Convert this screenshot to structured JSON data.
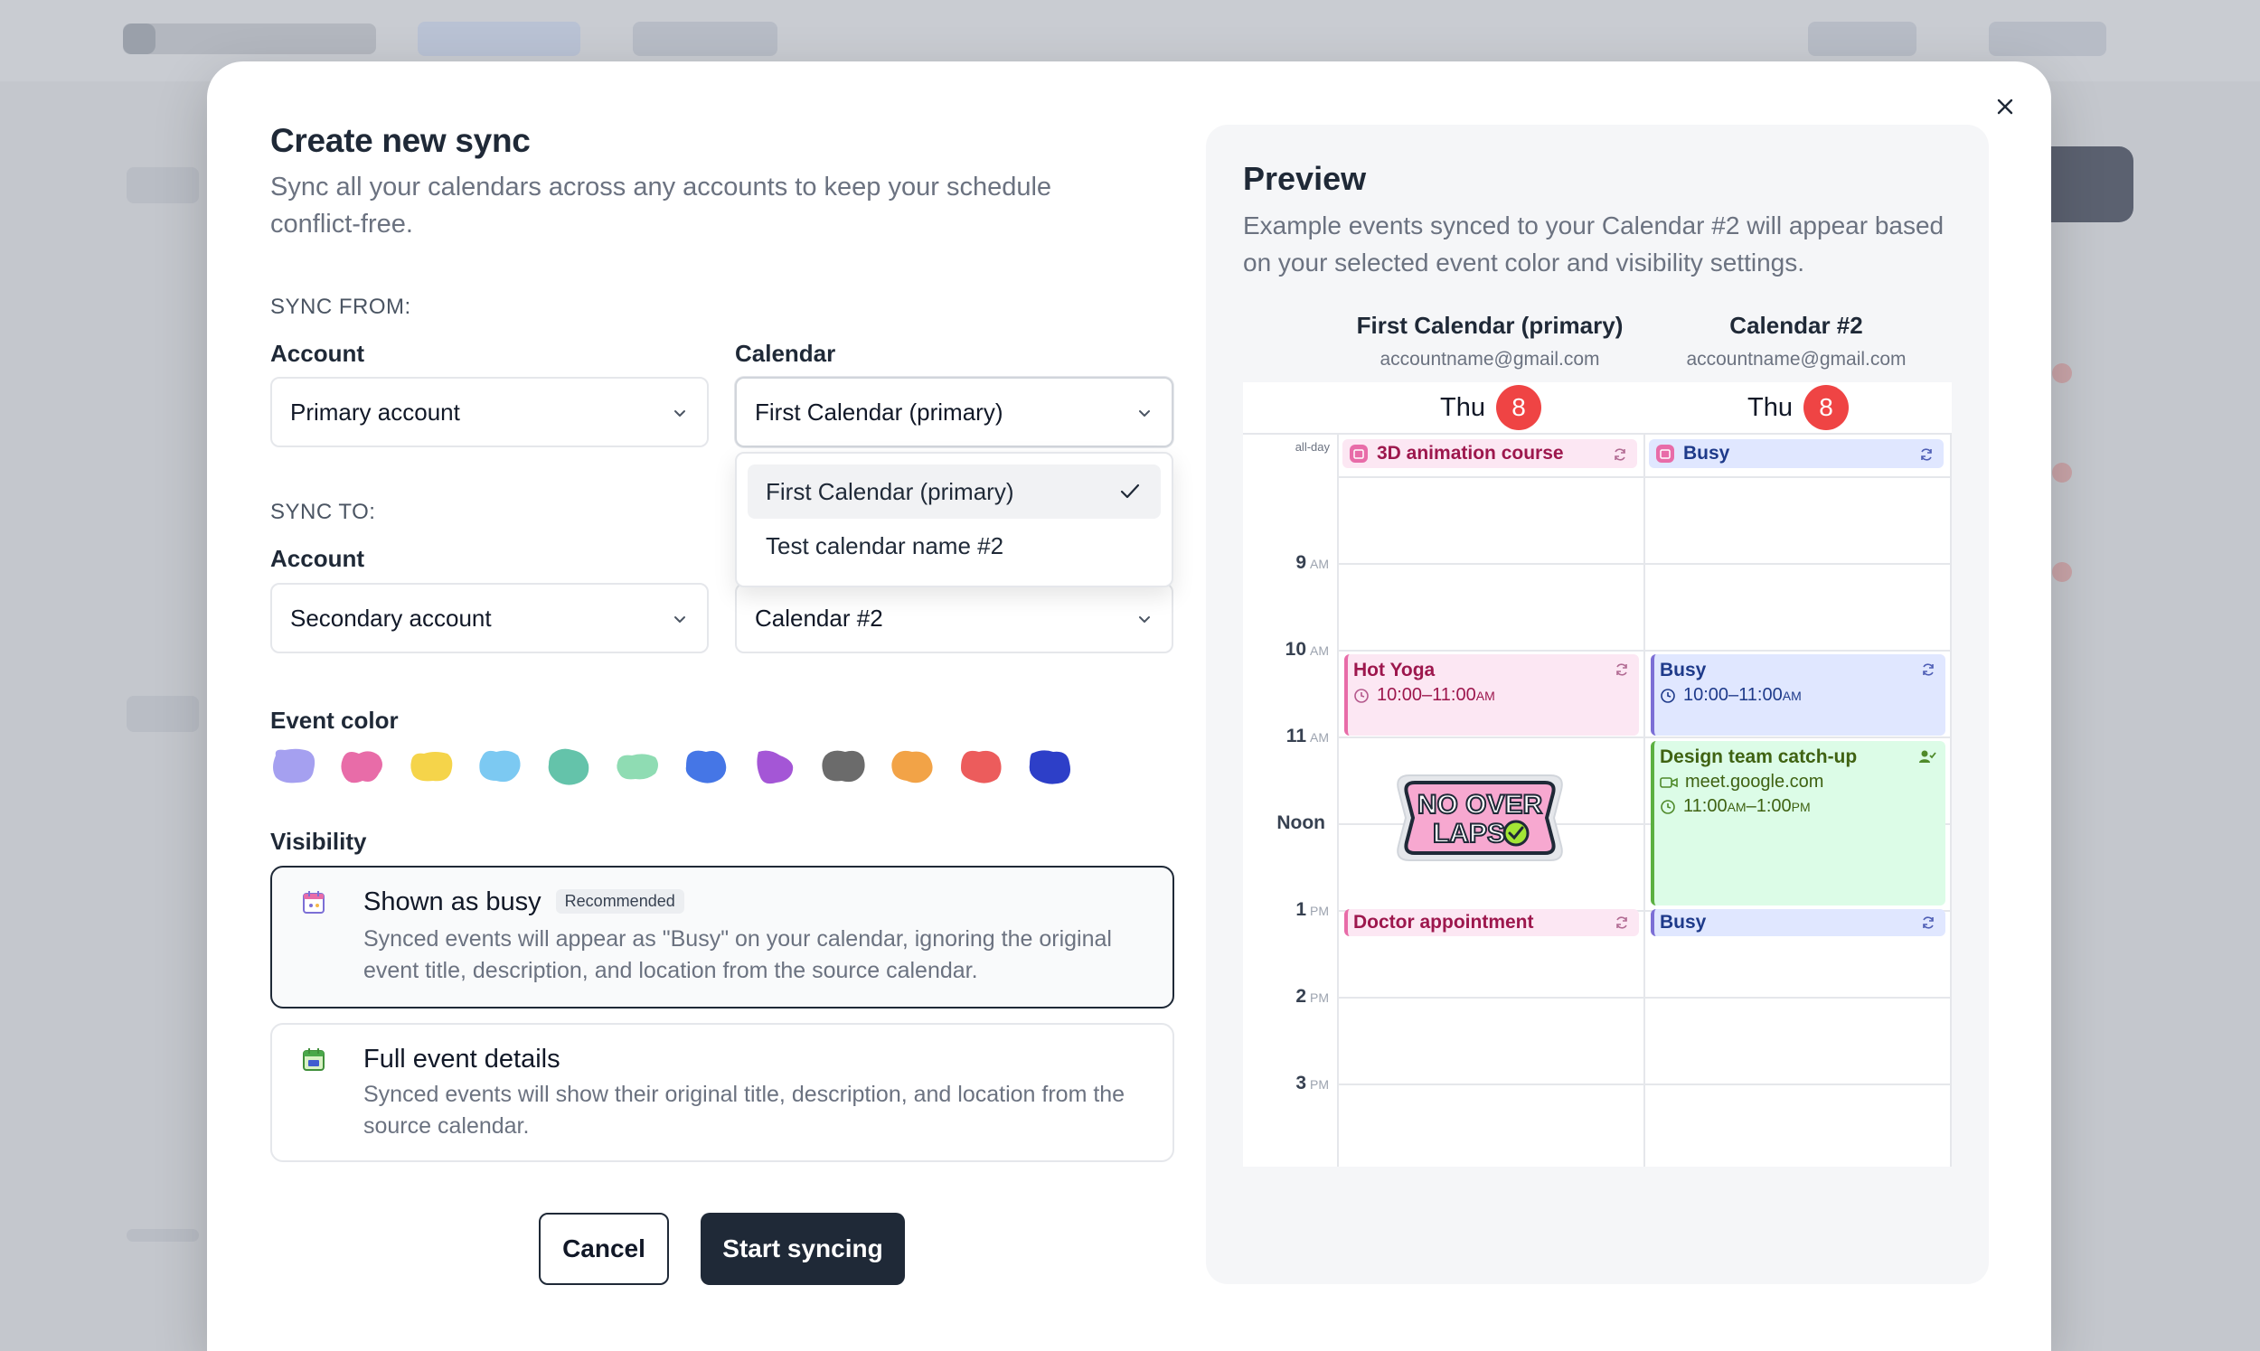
{
  "modal": {
    "title": "Create new sync",
    "subtitle": "Sync all your calendars across any accounts to keep your schedule conflict-free."
  },
  "sync_from": {
    "section_label": "SYNC FROM:",
    "account_label": "Account",
    "account_value": "Primary account",
    "calendar_label": "Calendar",
    "calendar_value": "First Calendar (primary)"
  },
  "calendar_dropdown": {
    "options": [
      "First Calendar (primary)",
      "Test calendar name #2"
    ],
    "selected": "First Calendar (primary)"
  },
  "sync_to": {
    "section_label": "SYNC TO:",
    "account_label": "Account",
    "account_value": "Secondary account",
    "calendar_value": "Calendar #2"
  },
  "event_color": {
    "label": "Event color",
    "colors": [
      "#a5a0f0",
      "#e86ca8",
      "#f5d44a",
      "#7cc9f2",
      "#64c3aa",
      "#8fdcb3",
      "#4576e6",
      "#a456d6",
      "#6b6b6b",
      "#f2a347",
      "#ec5c5c",
      "#2d3fc8"
    ]
  },
  "visibility": {
    "label": "Visibility",
    "options": [
      {
        "title": "Shown as busy",
        "badge": "Recommended",
        "description": "Synced events will appear as \"Busy\" on your calendar, ignoring the original event title, description, and location from the source calendar."
      },
      {
        "title": "Full event details",
        "description": "Synced events will show their original title, description, and location from the source calendar."
      }
    ]
  },
  "actions": {
    "cancel": "Cancel",
    "start": "Start syncing"
  },
  "preview": {
    "title": "Preview",
    "subtitle": "Example events synced to your Calendar #2 will appear based on your selected event color and visibility settings.",
    "columns": [
      {
        "name": "First Calendar (primary)",
        "email": "accountname@gmail.com",
        "day": "Thu",
        "date": "8"
      },
      {
        "name": "Calendar #2",
        "email": "accountname@gmail.com",
        "day": "Thu",
        "date": "8"
      }
    ],
    "allday_label": "all-day",
    "times": [
      {
        "h": "9",
        "p": "AM"
      },
      {
        "h": "10",
        "p": "AM"
      },
      {
        "h": "11",
        "p": "AM"
      },
      {
        "h": "Noon",
        "p": ""
      },
      {
        "h": "1",
        "p": "PM"
      },
      {
        "h": "2",
        "p": "PM"
      },
      {
        "h": "3",
        "p": "PM"
      }
    ],
    "events": {
      "allday_left": "3D animation course",
      "allday_right": "Busy",
      "yoga_title": "Hot Yoga",
      "yoga_time": "10:00–11:00",
      "yoga_suffix": "AM",
      "busy1_title": "Busy",
      "busy1_time": "10:00–11:00",
      "busy1_suffix": "AM",
      "design_title": "Design team catch-up",
      "design_link": "meet.google.com",
      "design_time_a": "11:00",
      "design_time_a_sfx": "AM",
      "design_time_b": "–1:00",
      "design_time_b_sfx": "PM",
      "doctor_title": "Doctor appointment",
      "busy2_title": "Busy"
    },
    "sticker_lines": [
      "NO OVER",
      "LAPS"
    ]
  }
}
